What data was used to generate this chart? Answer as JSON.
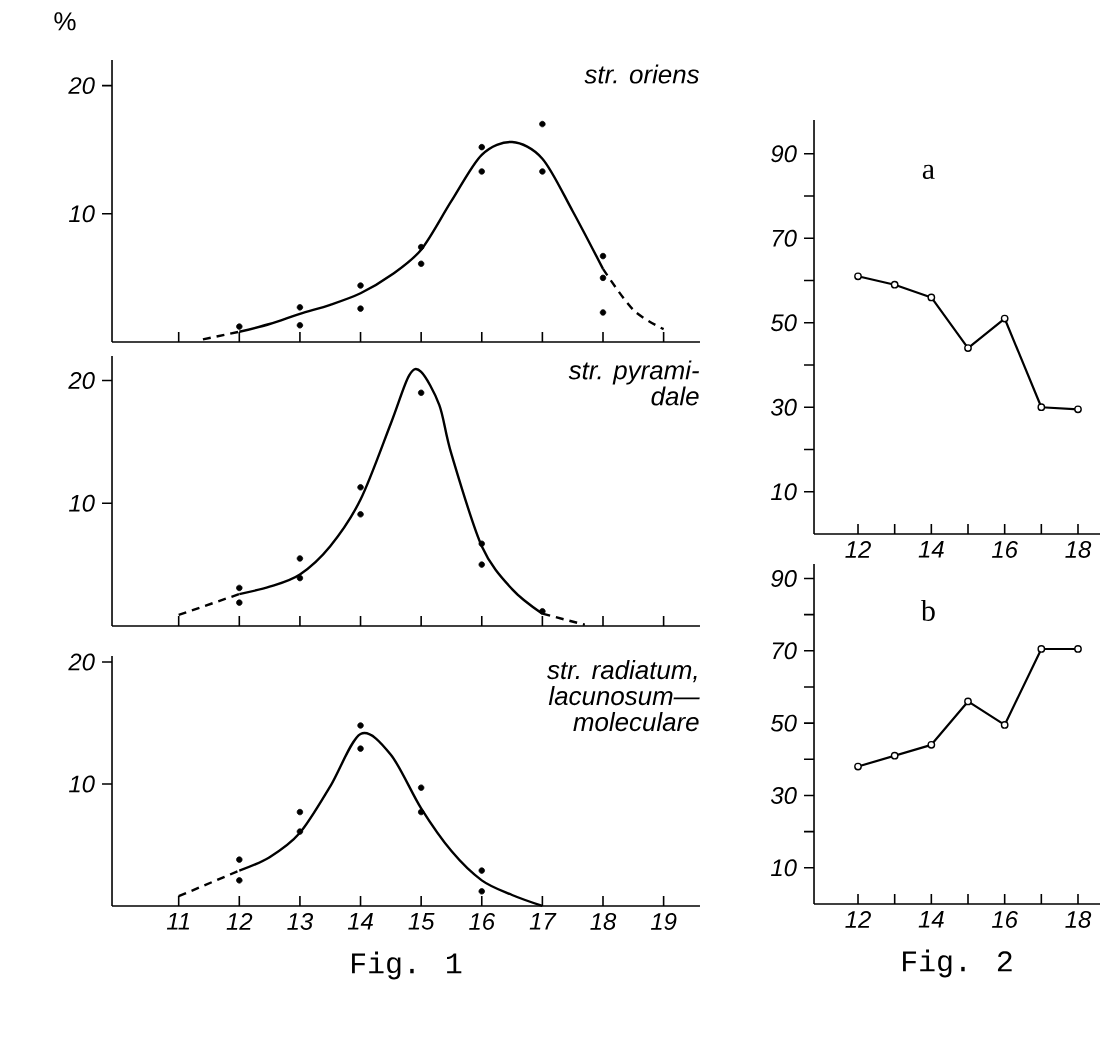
{
  "chart_data": [
    {
      "type": "line",
      "ylabel": "%",
      "annotations": [
        "str. oriens"
      ],
      "xlim": [
        9.9,
        19.6
      ],
      "ylim": [
        0,
        22
      ],
      "xticks": [
        11,
        12,
        13,
        14,
        15,
        16,
        17,
        18,
        19
      ],
      "yticks": [
        10,
        20
      ],
      "tick_labels": "y",
      "series": [
        {
          "type": "line",
          "color": "#000000",
          "line_style": "dashed",
          "x": [
            11.4,
            12
          ],
          "values": [
            0.2,
            0.8
          ]
        },
        {
          "type": "line",
          "color": "#000000",
          "line_style": "solid",
          "x": [
            12,
            12.5,
            13,
            13.5,
            14,
            14.5,
            15,
            15.5,
            16,
            16.5,
            17,
            17.5,
            18
          ],
          "values": [
            0.8,
            1.4,
            2.2,
            2.9,
            3.8,
            5.2,
            7.2,
            11,
            14.6,
            15.6,
            14.3,
            10.2,
            5.7
          ]
        },
        {
          "type": "line",
          "color": "#000000",
          "line_style": "dashed",
          "x": [
            18,
            18.5,
            19
          ],
          "values": [
            5.7,
            2.5,
            1.0
          ]
        },
        {
          "type": "scatter",
          "color": "#000000",
          "x": [
            12,
            13,
            13,
            14,
            14,
            15,
            15,
            16,
            16,
            17,
            17,
            18,
            18,
            18
          ],
          "values": [
            1.2,
            2.7,
            1.3,
            4.4,
            2.6,
            7.4,
            6.1,
            15.2,
            13.3,
            17,
            13.3,
            6.7,
            5,
            2.3
          ]
        }
      ]
    },
    {
      "type": "line",
      "annotations": [
        "str. pyrami-",
        "dale"
      ],
      "xlim": [
        9.9,
        19.6
      ],
      "ylim": [
        0,
        22
      ],
      "xticks": [
        11,
        12,
        13,
        14,
        15,
        16,
        17,
        18,
        19
      ],
      "yticks": [
        10,
        20
      ],
      "tick_labels": "y",
      "series": [
        {
          "type": "line",
          "color": "#000000",
          "line_style": "dashed",
          "x": [
            11,
            12
          ],
          "values": [
            0.9,
            2.6
          ]
        },
        {
          "type": "line",
          "color": "#000000",
          "line_style": "solid",
          "x": [
            12,
            12.5,
            13,
            13.5,
            14,
            14.5,
            14.8,
            15,
            15.3,
            15.5,
            16,
            16.5,
            17
          ],
          "values": [
            2.6,
            3.2,
            4.2,
            6.5,
            10.3,
            16.5,
            20.4,
            20.7,
            18,
            14,
            6.5,
            3,
            1.0
          ]
        },
        {
          "type": "line",
          "color": "#000000",
          "line_style": "dashed",
          "x": [
            17,
            17.7
          ],
          "values": [
            1.0,
            0.1
          ]
        },
        {
          "type": "scatter",
          "color": "#000000",
          "x": [
            12,
            12,
            13,
            13,
            14,
            14,
            15,
            16,
            16,
            17
          ],
          "values": [
            3.1,
            1.9,
            5.5,
            3.9,
            11.3,
            9.1,
            19,
            6.7,
            5,
            1.2
          ]
        }
      ]
    },
    {
      "type": "line",
      "xlabel": "Fig. 1",
      "annotations": [
        "str. radiatum,",
        "lacunosum—",
        "moleculare"
      ],
      "xlim": [
        9.9,
        19.6
      ],
      "ylim": [
        0,
        20.5
      ],
      "xticks": [
        11,
        12,
        13,
        14,
        15,
        16,
        17,
        18,
        19
      ],
      "yticks": [
        10,
        20
      ],
      "series": [
        {
          "type": "line",
          "color": "#000000",
          "line_style": "dashed",
          "x": [
            11,
            12
          ],
          "values": [
            0.8,
            2.9
          ]
        },
        {
          "type": "line",
          "color": "#000000",
          "line_style": "solid",
          "x": [
            12,
            12.5,
            13,
            13.5,
            14,
            14.5,
            15,
            15.5,
            16,
            16.5,
            17
          ],
          "values": [
            2.9,
            4,
            6,
            9.8,
            14.1,
            12.4,
            8,
            4.5,
            2.1,
            0.9,
            0
          ]
        },
        {
          "type": "scatter",
          "color": "#000000",
          "x": [
            12,
            12,
            13,
            13,
            14,
            14,
            15,
            15,
            16,
            16
          ],
          "values": [
            3.8,
            2.1,
            7.7,
            6.1,
            14.8,
            12.9,
            9.7,
            7.7,
            2.9,
            1.2
          ]
        }
      ]
    },
    {
      "type": "line",
      "title": "a",
      "xlim": [
        10.8,
        18.6
      ],
      "ylim": [
        0,
        98
      ],
      "xticks": [
        12,
        {
          "value": 13,
          "label": null
        },
        14,
        {
          "value": 15,
          "label": null
        },
        16,
        {
          "value": 17,
          "label": null
        },
        18
      ],
      "yticks": [
        10,
        {
          "value": 20,
          "label": null
        },
        30,
        {
          "value": 40,
          "label": null
        },
        50,
        {
          "value": 60,
          "label": null
        },
        70,
        {
          "value": 80,
          "label": null
        },
        90
      ],
      "marker": "circle",
      "line_style": "solid",
      "series": [
        {
          "color": "#000000",
          "x": [
            12,
            13,
            14,
            15,
            16,
            17,
            18
          ],
          "values": [
            61,
            59,
            56,
            44,
            51,
            30,
            29.5
          ]
        }
      ]
    },
    {
      "type": "line",
      "title": "b",
      "xlabel": "Fig. 2",
      "xlim": [
        10.8,
        18.6
      ],
      "ylim": [
        0,
        94
      ],
      "xticks": [
        12,
        {
          "value": 13,
          "label": null
        },
        14,
        {
          "value": 15,
          "label": null
        },
        16,
        {
          "value": 17,
          "label": null
        },
        18
      ],
      "yticks": [
        10,
        {
          "value": 20,
          "label": null
        },
        30,
        {
          "value": 40,
          "label": null
        },
        50,
        {
          "value": 60,
          "label": null
        },
        70,
        {
          "value": 80,
          "label": null
        },
        90
      ],
      "marker": "circle",
      "line_style": "solid",
      "series": [
        {
          "color": "#000000",
          "x": [
            12,
            13,
            14,
            15,
            16,
            17,
            18
          ],
          "values": [
            38,
            41,
            44,
            56,
            49.5,
            70.5,
            70.5
          ]
        }
      ]
    }
  ]
}
